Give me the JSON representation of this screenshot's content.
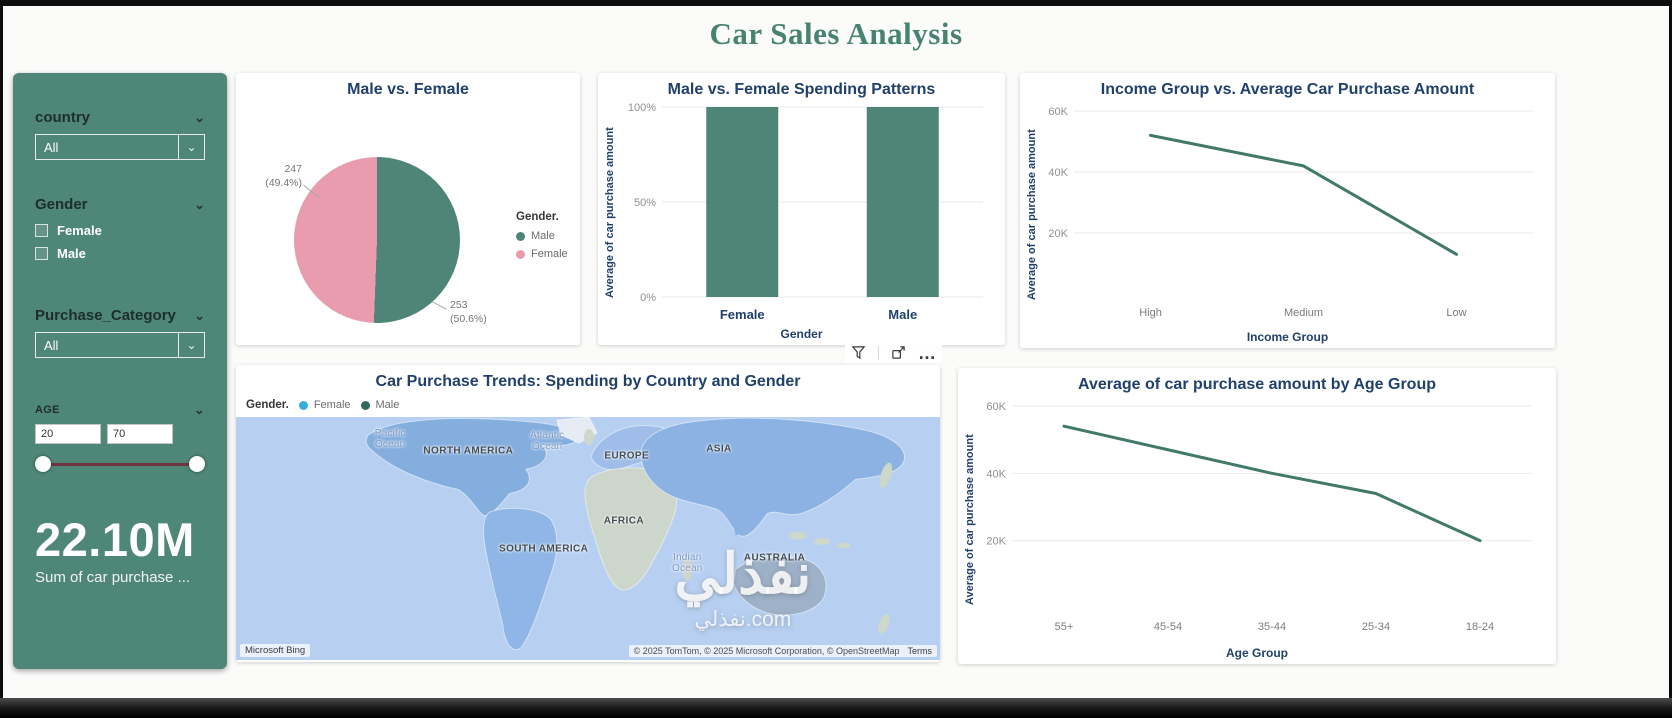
{
  "title": "Car Sales Analysis",
  "icons": {
    "chevron_down": "⌄"
  },
  "toolbar": {
    "more_label": "…"
  },
  "sidebar": {
    "country": {
      "label": "country",
      "value": "All"
    },
    "gender": {
      "label": "Gender",
      "options": [
        "Female",
        "Male"
      ]
    },
    "purchase_category": {
      "label": "Purchase_Category",
      "value": "All"
    },
    "age": {
      "label": "AGE",
      "min": "20",
      "max": "70"
    },
    "kpi": {
      "value": "22.10M",
      "caption": "Sum of car purchase ..."
    }
  },
  "chart_data": [
    {
      "type": "pie",
      "title": "Male vs. Female",
      "legend_title": "Gender.",
      "slices": [
        {
          "label": "Male",
          "value": 253,
          "pct": "50.6%",
          "color": "#4e8577",
          "callout_value": "253",
          "callout_pct": "(50.6%)"
        },
        {
          "label": "Female",
          "value": 247,
          "pct": "49.4%",
          "color": "#e89cae",
          "callout_value": "247",
          "callout_pct": "(49.4%)"
        }
      ]
    },
    {
      "type": "bar",
      "title": "Male vs. Female Spending Patterns",
      "categories": [
        "Female",
        "Male"
      ],
      "values": [
        100,
        100
      ],
      "ylim": [
        0,
        100
      ],
      "yticks": [
        0,
        50,
        100
      ],
      "ytick_labels": [
        "0%",
        "50%",
        "100%"
      ],
      "ylabel": "Average of car purchase amount",
      "xlabel": "Gender",
      "bar_color": "#4e8577"
    },
    {
      "type": "line",
      "title": "Income Group vs. Average Car Purchase Amount",
      "categories": [
        "High",
        "Medium",
        "Low"
      ],
      "values": [
        52000,
        42000,
        13000
      ],
      "ylim": [
        0,
        60000
      ],
      "yticks": [
        20000,
        40000,
        60000
      ],
      "ytick_labels": [
        "20K",
        "40K",
        "60K"
      ],
      "ylabel": "Average of car purchase amount",
      "xlabel": "Income Group",
      "line_color": "#41796a"
    },
    {
      "type": "map",
      "title": "Car Purchase Trends: Spending by Country and Gender",
      "legend_title": "Gender.",
      "legend": [
        {
          "label": "Female",
          "color": "#3aabdf"
        },
        {
          "label": "Male",
          "color": "#33685c"
        }
      ],
      "labels": [
        {
          "text": "NORTH AMERICA",
          "x": 33,
          "y": 14,
          "type": "continent"
        },
        {
          "text": "EUROPE",
          "x": 55.5,
          "y": 16,
          "type": "continent"
        },
        {
          "text": "ASIA",
          "x": 68.6,
          "y": 13,
          "type": "continent"
        },
        {
          "text": "AFRICA",
          "x": 55.1,
          "y": 43,
          "type": "continent"
        },
        {
          "text": "SOUTH AMERICA",
          "x": 43.7,
          "y": 54.5,
          "type": "continent"
        },
        {
          "text": "AUSTRALIA",
          "x": 76.5,
          "y": 58,
          "type": "continent"
        },
        {
          "text": "Pacific\nOcean",
          "x": 21.9,
          "y": 9,
          "type": "ocean"
        },
        {
          "text": "Atlantic\nOcean",
          "x": 44.2,
          "y": 10,
          "type": "ocean"
        },
        {
          "text": "Indian\nOcean",
          "x": 64.1,
          "y": 60,
          "type": "ocean"
        }
      ],
      "attribution": "Microsoft Bing",
      "copyright": "© 2025 TomTom, © 2025 Microsoft Corporation, © OpenStreetMap",
      "terms": "Terms"
    },
    {
      "type": "line",
      "title": "Average of car purchase amount by Age Group",
      "categories": [
        "55+",
        "45-54",
        "35-44",
        "25-34",
        "18-24"
      ],
      "values": [
        54000,
        47000,
        40000,
        34000,
        20000
      ],
      "ylim": [
        0,
        60000
      ],
      "yticks": [
        20000,
        40000,
        60000
      ],
      "ytick_labels": [
        "20K",
        "40K",
        "60K"
      ],
      "ylabel": "Average of car purchase amount",
      "xlabel": "Age Group",
      "line_color": "#41796a"
    }
  ],
  "watermark": {
    "line1": "نفذلي",
    "line2": "نفذلي.com"
  }
}
